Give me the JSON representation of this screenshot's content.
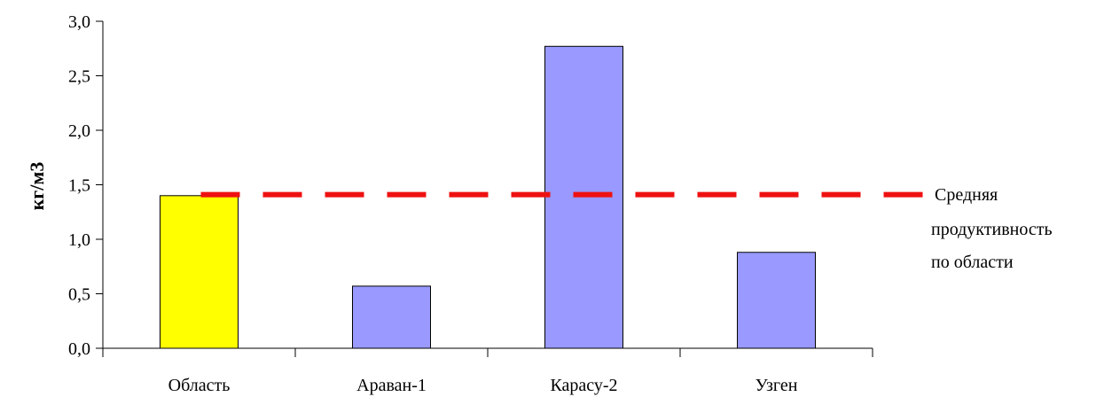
{
  "chart_data": {
    "type": "bar",
    "categories": [
      "Область",
      "Араван-1",
      "Карасу-2",
      "Узген"
    ],
    "values": [
      1.4,
      0.57,
      2.77,
      0.88
    ],
    "bar_colors": [
      "#ffff00",
      "#9999ff",
      "#9999ff",
      "#9999ff"
    ],
    "ylabel": "кг/м3",
    "xlabel": "",
    "ylim": [
      0,
      3.0
    ],
    "yticks": [
      0.0,
      0.5,
      1.0,
      1.5,
      2.0,
      2.5,
      3.0
    ],
    "ytick_labels": [
      "0,0",
      "0,5",
      "1,0",
      "1,5",
      "2,0",
      "2,5",
      "3,0"
    ],
    "grid": false,
    "reference_line": {
      "value": 1.41,
      "color": "#ee1111",
      "style": "dashed",
      "label_lines": [
        "Средняя",
        "продуктивность",
        "по области"
      ]
    }
  }
}
